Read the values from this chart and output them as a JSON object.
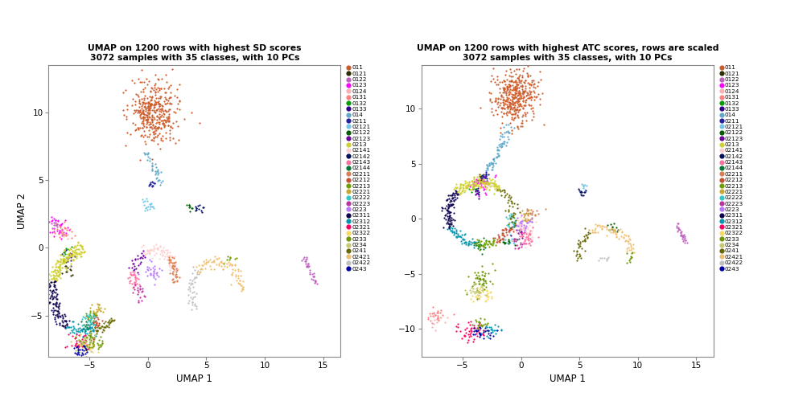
{
  "title1": "UMAP on 1200 rows with highest SD scores\n3072 samples with 35 classes, with 10 PCs",
  "title2": "UMAP on 1200 rows with highest ATC scores, rows are scaled\n3072 samples with 35 classes, with 10 PCs",
  "xlabel": "UMAP 1",
  "ylabel": "UMAP 2",
  "xlim1": [
    -8.5,
    16.5
  ],
  "ylim1": [
    -8.0,
    13.5
  ],
  "xlim2": [
    -8.5,
    16.5
  ],
  "ylim2": [
    -12.5,
    14.0
  ],
  "xticks1": [
    -5,
    0,
    5,
    10,
    15
  ],
  "yticks1": [
    -5,
    0,
    5,
    10
  ],
  "xticks2": [
    -5,
    0,
    5,
    10,
    15
  ],
  "yticks2": [
    -10,
    -5,
    0,
    5,
    10
  ],
  "classes": [
    "011",
    "0121",
    "0122",
    "0123",
    "0124",
    "0131",
    "0132",
    "0133",
    "014",
    "0211",
    "02121",
    "02122",
    "02123",
    "0213",
    "02141",
    "02142",
    "02143",
    "02144",
    "02211",
    "02212",
    "02213",
    "02221",
    "02222",
    "02223",
    "0223",
    "02311",
    "02312",
    "02321",
    "02322",
    "0233",
    "0234",
    "0241",
    "02421",
    "02422",
    "0243"
  ],
  "class_colors": {
    "011": "#CD5B2A",
    "0121": "#2D2D00",
    "0122": "#C060C0",
    "0123": "#FF00FF",
    "0124": "#FFB0B0",
    "0131": "#FF8080",
    "0132": "#00A000",
    "0133": "#300090",
    "014": "#60A8C8",
    "0211": "#2020A0",
    "02121": "#70C8E8",
    "02122": "#006000",
    "02123": "#7000A0",
    "0213": "#D0D030",
    "02141": "#FFD0D0",
    "02142": "#001060",
    "02143": "#FF70A0",
    "02144": "#007838",
    "02211": "#D88050",
    "02212": "#C85030",
    "02213": "#70A000",
    "02221": "#C8A830",
    "02222": "#30C8C8",
    "02223": "#C030A0",
    "0223": "#B878FF",
    "02311": "#100050",
    "02312": "#0098B0",
    "02321": "#FF0060",
    "02322": "#F8D860",
    "0233": "#709800",
    "0234": "#C8C870",
    "0241": "#686800",
    "02421": "#F0C070",
    "02422": "#C0C0C0",
    "0243": "#0000A8"
  }
}
